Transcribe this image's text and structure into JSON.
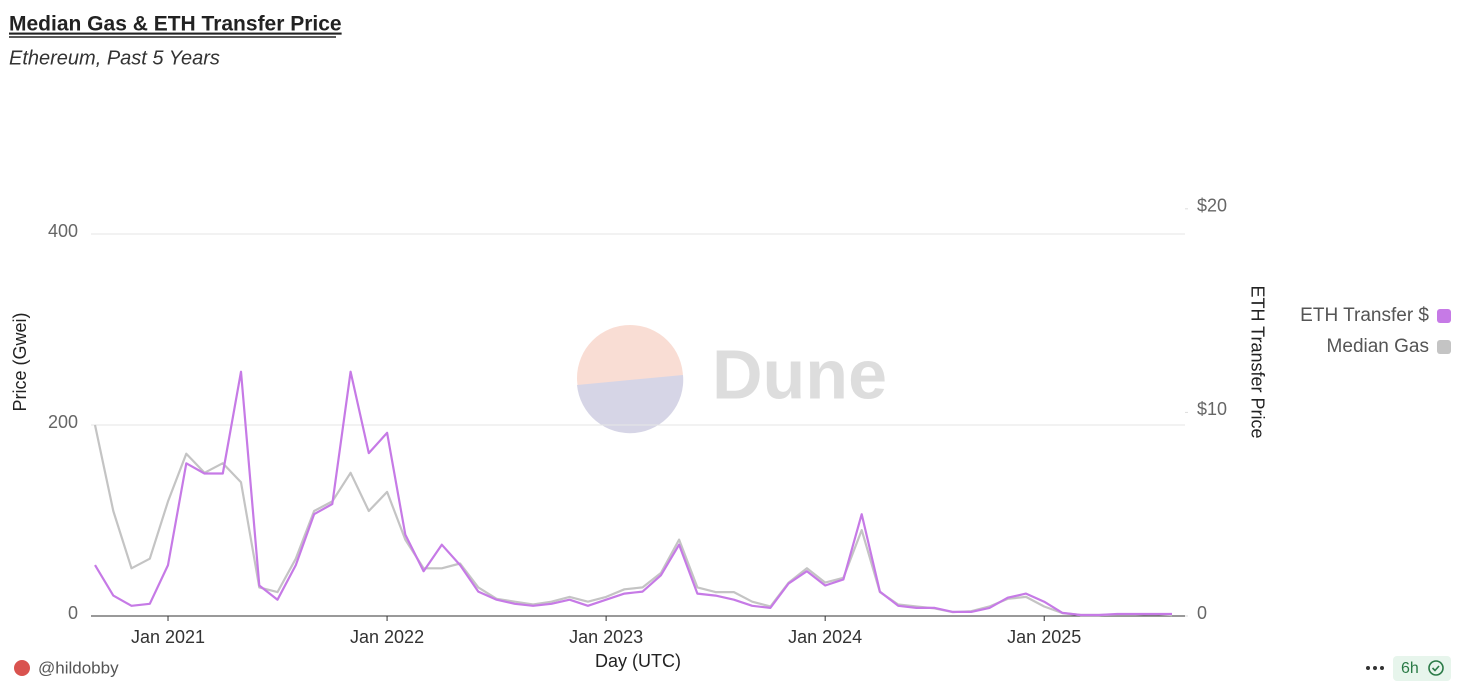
{
  "chart_data": {
    "type": "line",
    "title": "Median Gas & ETH Transfer Price",
    "subtitle": "Ethereum, Past 5 Years",
    "x_label": "Day (UTC)",
    "y_label": "Price (Gwei)",
    "y2_label": "ETH Transfer Price",
    "watermark": "Dune",
    "author": "@hildobby",
    "refresh": "6h",
    "legend": "right",
    "grid": true,
    "x": [
      "2020-09",
      "2020-10",
      "2020-11",
      "2020-12",
      "2021-01",
      "2021-02",
      "2021-03",
      "2021-04",
      "2021-05",
      "2021-06",
      "2021-07",
      "2021-08",
      "2021-09",
      "2021-10",
      "2021-11",
      "2021-12",
      "2022-01",
      "2022-02",
      "2022-03",
      "2022-04",
      "2022-05",
      "2022-06",
      "2022-07",
      "2022-08",
      "2022-09",
      "2022-10",
      "2022-11",
      "2022-12",
      "2023-01",
      "2023-02",
      "2023-03",
      "2023-04",
      "2023-05",
      "2023-06",
      "2023-07",
      "2023-08",
      "2023-09",
      "2023-10",
      "2023-11",
      "2023-12",
      "2024-01",
      "2024-02",
      "2024-03",
      "2024-04",
      "2024-05",
      "2024-06",
      "2024-07",
      "2024-08",
      "2024-09",
      "2024-10",
      "2024-11",
      "2024-12",
      "2025-01",
      "2025-02",
      "2025-03",
      "2025-04",
      "2025-05",
      "2025-06",
      "2025-07",
      "2025-08"
    ],
    "xticks": [
      {
        "value": "2021-01",
        "label": "Jan 2021"
      },
      {
        "value": "2022-01",
        "label": "Jan 2022"
      },
      {
        "value": "2023-01",
        "label": "Jan 2023"
      },
      {
        "value": "2024-01",
        "label": "Jan 2024"
      },
      {
        "value": "2025-01",
        "label": "Jan 2025"
      }
    ],
    "ylim": [
      0,
      533
    ],
    "yticks": [
      0,
      200,
      400
    ],
    "y2lim": [
      0,
      25
    ],
    "y2ticks": [
      0,
      {
        "value": 10,
        "label": "$10"
      },
      {
        "value": 20,
        "label": "$20"
      }
    ],
    "series": [
      {
        "name": "Median Gas",
        "color": "#c4c4c4",
        "axis": "y",
        "values": [
          200,
          110,
          50,
          60,
          120,
          170,
          150,
          160,
          140,
          30,
          25,
          60,
          110,
          120,
          150,
          110,
          130,
          80,
          50,
          50,
          55,
          30,
          18,
          15,
          12,
          15,
          20,
          15,
          20,
          28,
          30,
          45,
          80,
          30,
          25,
          25,
          15,
          10,
          35,
          50,
          35,
          40,
          90,
          25,
          12,
          10,
          8,
          4,
          5,
          10,
          18,
          20,
          10,
          3,
          1,
          1,
          1.5,
          1.5,
          2,
          1
        ]
      },
      {
        "name": "ETH Transfer $",
        "color": "#c67ae6",
        "axis": "y2",
        "values": [
          2.5,
          1.0,
          0.5,
          0.6,
          2.5,
          7.5,
          7,
          7,
          12,
          1.5,
          0.8,
          2.5,
          5,
          5.5,
          12,
          8,
          9,
          4,
          2.2,
          3.5,
          2.5,
          1.2,
          0.8,
          0.6,
          0.5,
          0.6,
          0.8,
          0.5,
          0.8,
          1.1,
          1.2,
          2,
          3.5,
          1.1,
          1.0,
          0.8,
          0.5,
          0.4,
          1.6,
          2.2,
          1.5,
          1.8,
          5,
          1.2,
          0.5,
          0.4,
          0.4,
          0.2,
          0.2,
          0.4,
          0.9,
          1.1,
          0.7,
          0.15,
          0.05,
          0.05,
          0.1,
          0.1,
          0.1,
          0.1
        ]
      }
    ]
  }
}
